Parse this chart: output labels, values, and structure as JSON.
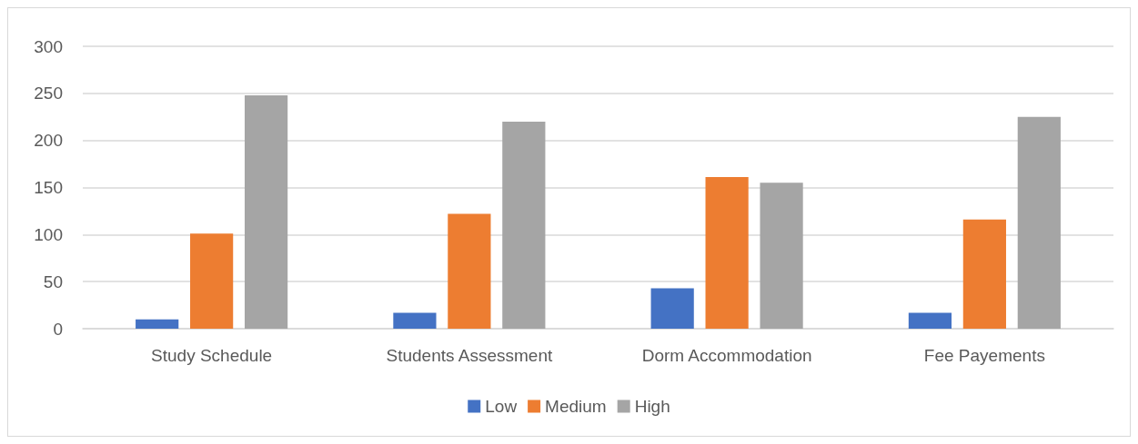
{
  "chart_data": {
    "type": "bar",
    "categories": [
      "Study Schedule",
      "Students Assessment",
      "Dorm Accommodation",
      "Fee Payements"
    ],
    "series": [
      {
        "name": "Low",
        "color": "#4472c4",
        "values": [
          10,
          17,
          43,
          17
        ]
      },
      {
        "name": "Medium",
        "color": "#ed7d31",
        "values": [
          101,
          122,
          161,
          116
        ]
      },
      {
        "name": "High",
        "color": "#a5a5a5",
        "values": [
          248,
          220,
          155,
          225
        ]
      }
    ],
    "ylim": [
      0,
      300
    ],
    "yticks": [
      0,
      50,
      100,
      150,
      200,
      250,
      300
    ],
    "grid": "y",
    "legend": "bottom"
  }
}
